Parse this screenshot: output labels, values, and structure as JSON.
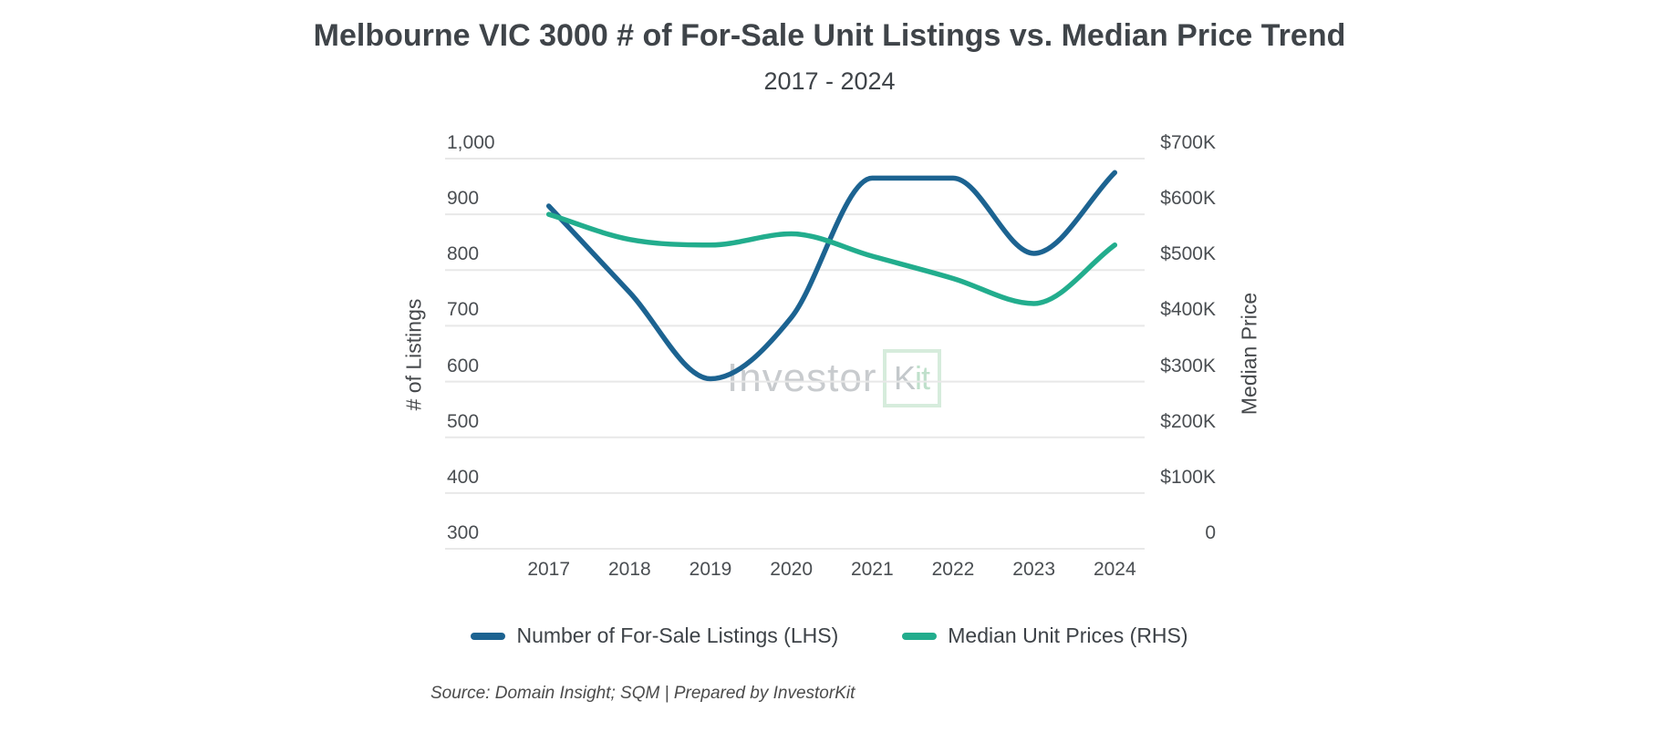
{
  "title": "Melbourne VIC 3000 # of For-Sale Unit Listings vs. Median Price Trend",
  "subtitle": "2017 - 2024",
  "watermark": {
    "investor": "Investor",
    "kit_k": "K",
    "kit_it": "it"
  },
  "source": "Source: Domain Insight; SQM | Prepared by InvestorKit",
  "left_axis": {
    "title": "# of Listings",
    "ticks": [
      "1,000",
      "900",
      "800",
      "700",
      "600",
      "500",
      "400",
      "300"
    ]
  },
  "right_axis": {
    "title": "Median Price",
    "ticks": [
      "$700K",
      "$600K",
      "$500K",
      "$400K",
      "$300K",
      "$200K",
      "$100K",
      "0"
    ]
  },
  "x_axis": {
    "ticks": [
      "2017",
      "2018",
      "2019",
      "2020",
      "2021",
      "2022",
      "2023",
      "2024"
    ]
  },
  "legend": {
    "items": [
      {
        "label": "Number of For-Sale Listings (LHS)",
        "color": "#1c6391"
      },
      {
        "label": "Median Unit Prices (RHS)",
        "color": "#22ad8d"
      }
    ]
  },
  "colors": {
    "background": "#ffffff",
    "grid": "#e8e8e8",
    "title_text": "#3f4449",
    "tick_text": "#4a4e52",
    "listings_line": "#1c6391",
    "price_line": "#22ad8d",
    "watermark_gray": "#c8cbce",
    "watermark_green": "#bfe0cb",
    "watermark_box_border": "#d6ecdc"
  },
  "chart_data": {
    "type": "line",
    "title": "Melbourne VIC 3000 # of For-Sale Unit Listings vs. Median Price Trend",
    "subtitle": "2017 - 2024",
    "x": [
      "2017",
      "2018",
      "2019",
      "2020",
      "2021",
      "2022",
      "2023",
      "2024"
    ],
    "series": [
      {
        "id": "listings",
        "name": "Number of For-Sale Listings (LHS)",
        "axis": "left",
        "color": "#1c6391",
        "values": [
          915,
          760,
          605,
          715,
          965,
          965,
          830,
          975
        ]
      },
      {
        "id": "median-price",
        "name": "Median Unit Prices (RHS)",
        "axis": "right",
        "color": "#22ad8d",
        "values": [
          600000,
          555000,
          545000,
          565000,
          525000,
          485000,
          440000,
          545000
        ]
      }
    ],
    "left_ylabel": "# of Listings",
    "right_ylabel": "Median Price",
    "left_ylim": [
      300,
      1000
    ],
    "right_ylim": [
      0,
      700000
    ],
    "grid": true,
    "smooth": true,
    "legend_position": "bottom"
  }
}
